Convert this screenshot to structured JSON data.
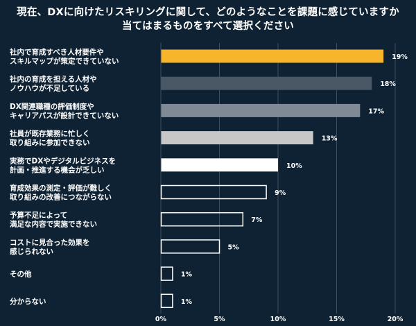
{
  "title": {
    "line1": "現在、DXに向けたリスキリングに関して、どのようなことを課題に感じていますか",
    "line2": "当てはまるものをすべて選択ください"
  },
  "chart_data": {
    "type": "bar",
    "orientation": "horizontal",
    "categories": [
      [
        "社内で育成すべき人材要件や",
        "スキルマップが策定できていない"
      ],
      [
        "社内の育成を担える人材や",
        "ノウハウが不足している"
      ],
      [
        "DX関連職種の評価制度や",
        "キャリアパスが設計できていない"
      ],
      [
        "社員が既存業務に忙しく",
        "取り組みに参加できない"
      ],
      [
        "実務でDXやデジタルビジネスを",
        "計画・推進する機会が乏しい"
      ],
      [
        "育成効果の測定・評価が難しく",
        "取り組みの改善につながらない"
      ],
      [
        "予算不足によって",
        "満足な内容で実施できない"
      ],
      [
        "コストに見合った効果を",
        "感じられない"
      ],
      [
        "その他"
      ],
      [
        "分からない"
      ]
    ],
    "values": [
      19,
      18,
      17,
      13,
      10,
      9,
      7,
      5,
      1,
      1
    ],
    "value_labels": [
      "19%",
      "18%",
      "17%",
      "13%",
      "10%",
      "9%",
      "7%",
      "5%",
      "1%",
      "1%"
    ],
    "bar_fill": [
      "#f7b52c",
      "#4a5866",
      "#7f8a96",
      "#c7c7c7",
      "#ffffff",
      "none",
      "none",
      "none",
      "none",
      "none"
    ],
    "bar_stroke": "#ffffff",
    "xlim": [
      0,
      20
    ],
    "xticks": [
      0,
      5,
      10,
      15,
      20
    ],
    "xtick_labels": [
      "0%",
      "5%",
      "10%",
      "15%",
      "20%"
    ],
    "grid": true,
    "grid_color": "#3c4f60"
  }
}
